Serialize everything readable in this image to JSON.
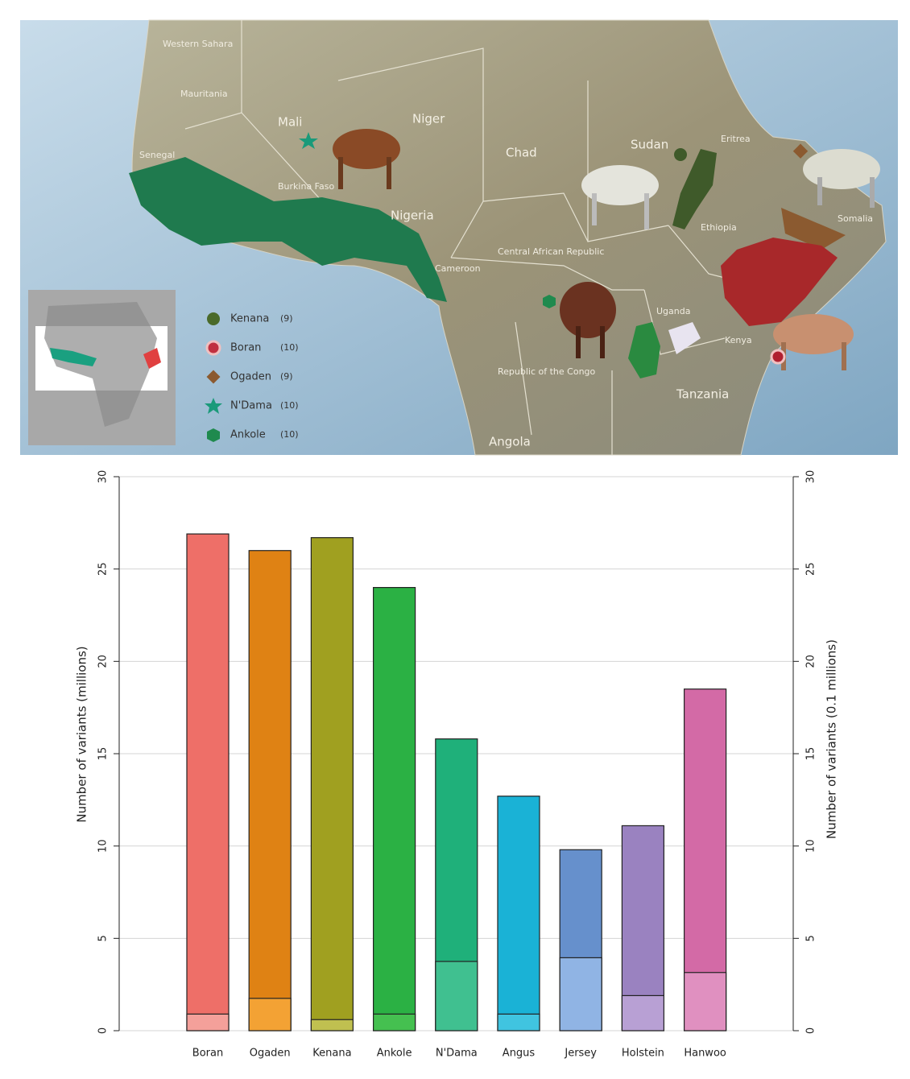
{
  "map": {
    "countries": [
      "Western Sahara",
      "Mauritania",
      "Mali",
      "Niger",
      "Chad",
      "Sudan",
      "Eritrea",
      "Senegal",
      "Burkina Faso",
      "Nigeria",
      "Ethiopia",
      "Somalia",
      "Cameroon",
      "Central African Republic",
      "Republic of the Congo",
      "Uganda",
      "Kenya",
      "Tanzania",
      "Angola"
    ],
    "legend": [
      {
        "label": "Kenana",
        "count": "(9)"
      },
      {
        "label": "Boran",
        "count": "(10)"
      },
      {
        "label": "Ogaden",
        "count": "(9)"
      },
      {
        "label": "N'Dama",
        "count": "(10)"
      },
      {
        "label": "Ankole",
        "count": "(10)"
      }
    ]
  },
  "chart_data": {
    "type": "bar",
    "ylabel": "Number of variants (millions)",
    "y2label": "Number of variants (0.1 millions)",
    "categories": [
      "Boran",
      "Ogaden",
      "Kenana",
      "Ankole",
      "N'Dama",
      "Angus",
      "Jersey",
      "Holstein",
      "Hanwoo"
    ],
    "series": [
      {
        "colors": [
          "#ee6f68",
          "#df8214",
          "#a0a020",
          "#2bb144",
          "#1fb07a",
          "#1ab2d6",
          "#6690cc",
          "#9a82c0",
          "#d36aa6"
        ],
        "values": [
          26.9,
          26.0,
          26.7,
          24.0,
          15.8,
          12.7,
          9.8,
          11.1,
          18.5
        ]
      },
      {
        "axis": "y2",
        "colors": [
          "#f4a09a",
          "#f3a234",
          "#c0c050",
          "#45c050",
          "#40c090",
          "#40c4e0",
          "#90b4e4",
          "#b8a0d4",
          "#e090c0"
        ],
        "values": [
          0.9,
          1.75,
          0.6,
          0.9,
          3.75,
          0.9,
          3.95,
          1.9,
          3.15
        ]
      }
    ],
    "ylim": [
      0,
      30
    ],
    "yticks": [
      0,
      5,
      10,
      15,
      20,
      25,
      30
    ],
    "y2lim": [
      0,
      30
    ],
    "y2ticks": [
      0,
      5,
      10,
      15,
      20,
      25,
      30
    ],
    "grid": true
  }
}
